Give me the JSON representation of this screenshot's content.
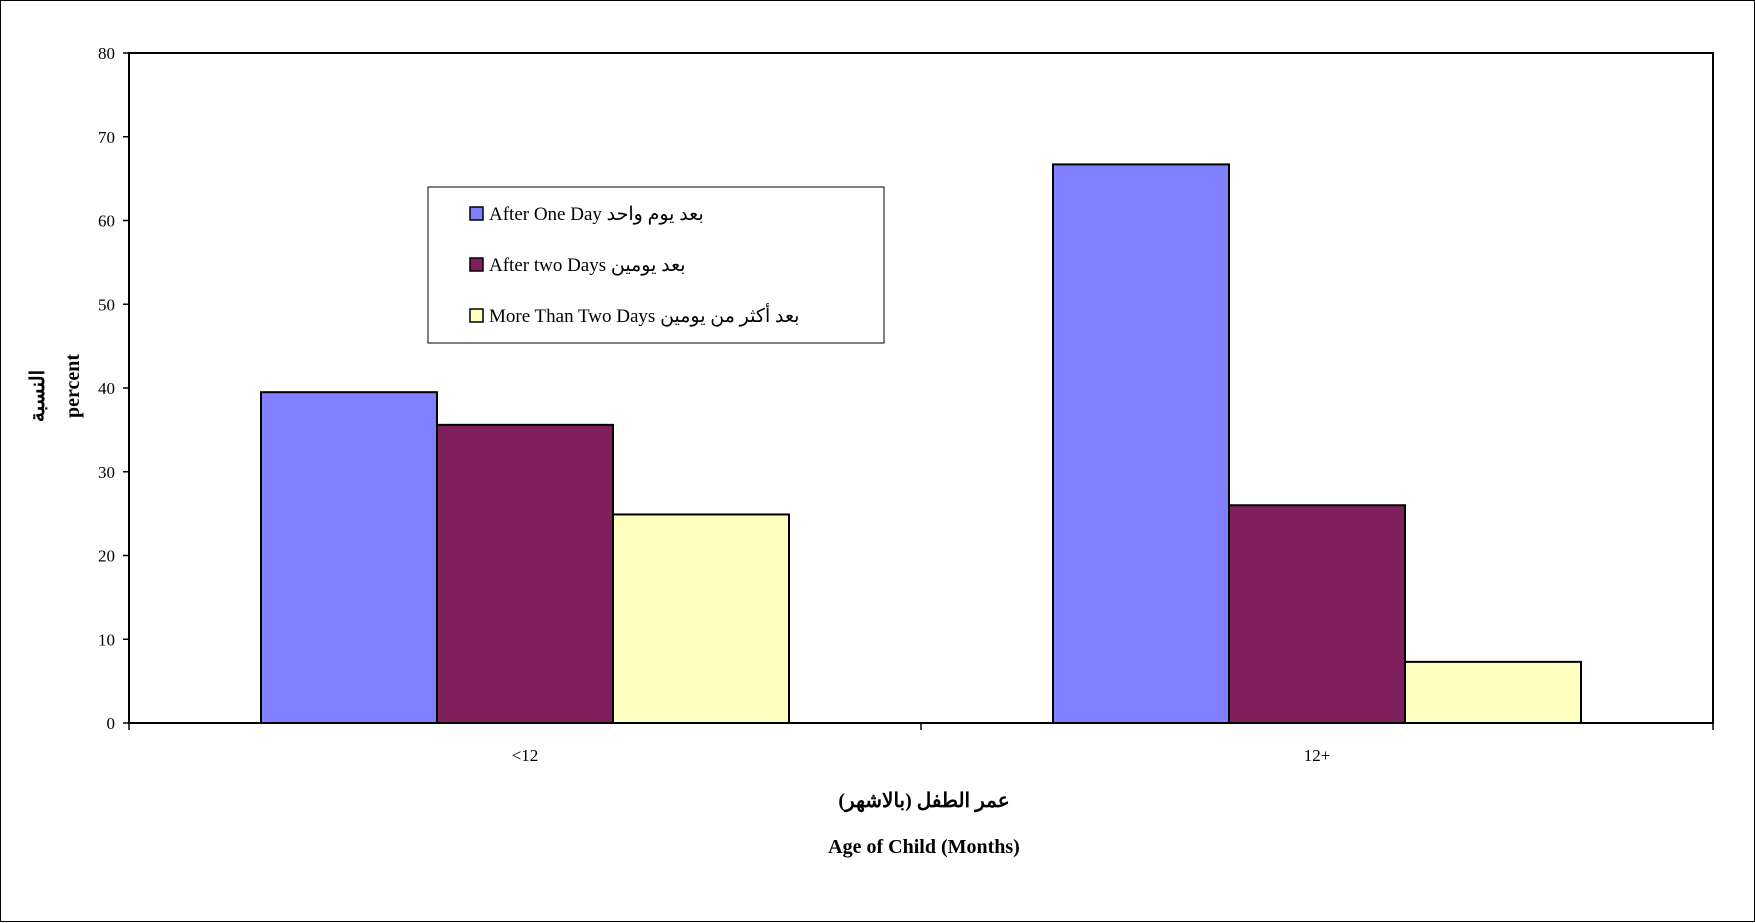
{
  "chart_data": {
    "type": "bar",
    "categories": [
      "<12",
      "12+"
    ],
    "series": [
      {
        "name": "After One Day  بعد يوم واحد",
        "color": "#8080FF",
        "values": [
          39.5,
          66.7
        ]
      },
      {
        "name": "After two Days  بعد يومين",
        "color": "#7F1F5B",
        "values": [
          35.6,
          26.0
        ]
      },
      {
        "name": "More Than Two Days بعد أكثر من يومين",
        "color": "#FFFFC0",
        "values": [
          24.9,
          7.3
        ]
      }
    ],
    "title": "",
    "xlabel_ar": "عمر الطفل (بالاشهر)",
    "xlabel": "Age of Child (Months)",
    "ylabel_ar": "النسبة",
    "ylabel": "percent",
    "ylim": [
      0,
      80
    ],
    "yticks": [
      "0",
      "10",
      "20",
      "30",
      "40",
      "50",
      "60",
      "70",
      "80"
    ],
    "grid": false,
    "legend_position": "top-left"
  }
}
